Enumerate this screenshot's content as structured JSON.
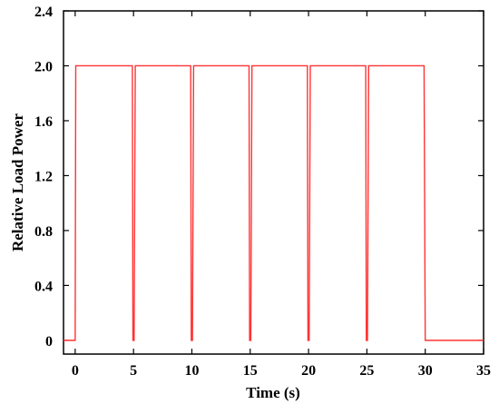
{
  "chart_data": {
    "type": "line",
    "title": "",
    "xlabel": "Time (s)",
    "ylabel": "Relative Load Power",
    "xlim": [
      -1,
      35
    ],
    "ylim": [
      -0.1,
      2.4
    ],
    "x_ticks": [
      0,
      5,
      10,
      15,
      20,
      25,
      30,
      35
    ],
    "x_tick_labels": [
      "0",
      "5",
      "10",
      "15",
      "20",
      "25",
      "30",
      "35"
    ],
    "y_ticks": [
      0,
      0.4,
      0.8,
      1.2,
      1.6,
      2.0,
      2.4
    ],
    "y_tick_labels": [
      "0",
      "0.4",
      "0.8",
      "1.2",
      "1.6",
      "2.0",
      "2.4"
    ],
    "grid": false,
    "legend": "none",
    "series": [
      {
        "color": "#ff3333",
        "x": [
          -1,
          0,
          0.05,
          0.15,
          4.9,
          4.95,
          5.05,
          5.15,
          9.9,
          9.95,
          10.05,
          10.15,
          14.9,
          14.95,
          15.05,
          15.15,
          19.9,
          19.95,
          20.05,
          20.15,
          24.9,
          24.95,
          25.05,
          25.15,
          29.9,
          30.0,
          30.1,
          35
        ],
        "y": [
          0,
          0,
          2.0,
          2.0,
          2.0,
          0,
          0,
          2.0,
          2.0,
          0,
          0,
          2.0,
          2.0,
          0,
          0,
          2.0,
          2.0,
          0,
          0,
          2.0,
          2.0,
          0,
          0,
          2.0,
          2.0,
          0,
          0,
          0
        ]
      }
    ]
  }
}
